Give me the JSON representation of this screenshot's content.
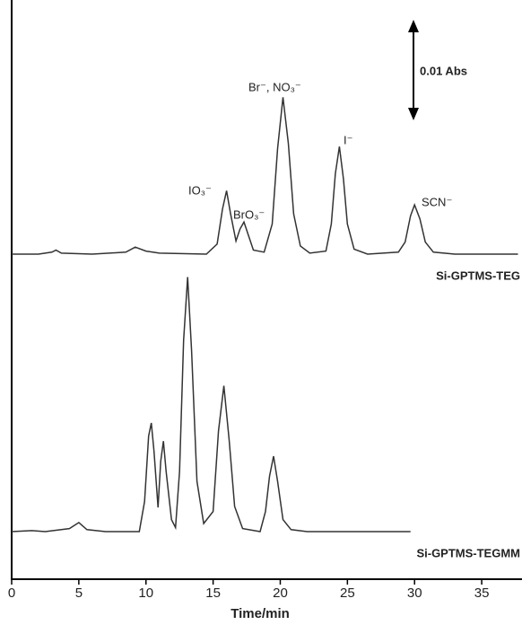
{
  "chart_data": {
    "type": "line",
    "x_label": "Time/min",
    "xlim": [
      0,
      38
    ],
    "xticks": [
      0,
      5,
      10,
      15,
      20,
      25,
      30,
      35
    ],
    "series": [
      {
        "name": "Si-GPTMS-TEG",
        "color": "#333333",
        "x": [
          0,
          2,
          3.0,
          3.3,
          3.7,
          6,
          8.5,
          9.2,
          10,
          11,
          14.5,
          15.3,
          15.7,
          16.0,
          16.3,
          16.7,
          17.0,
          17.3,
          17.6,
          18.0,
          18.8,
          19.4,
          19.8,
          20.2,
          20.6,
          21.0,
          21.5,
          22.2,
          23.4,
          23.8,
          24.1,
          24.4,
          24.7,
          25.0,
          25.5,
          26.5,
          28.8,
          29.3,
          29.7,
          30.0,
          30.4,
          30.8,
          31.4,
          33,
          37.7
        ],
        "values": [
          0,
          0,
          0.0002,
          0.0004,
          0.0001,
          0,
          0.0002,
          0.0007,
          0.0003,
          0.0001,
          0,
          0.001,
          0.0045,
          0.0063,
          0.004,
          0.0013,
          0.0025,
          0.0032,
          0.002,
          0.0004,
          0.0002,
          0.003,
          0.0105,
          0.0156,
          0.011,
          0.004,
          0.0008,
          0.0001,
          0.0003,
          0.003,
          0.008,
          0.0107,
          0.0075,
          0.003,
          0.0005,
          0,
          0.0002,
          0.0012,
          0.0038,
          0.0049,
          0.0035,
          0.0012,
          0.0002,
          0,
          0
        ]
      },
      {
        "name": "Si-GPTMS-TEGMM",
        "color": "#333333",
        "x": [
          0,
          1.5,
          2.5,
          4.3,
          5.0,
          5.6,
          7,
          9.5,
          9.9,
          10.2,
          10.4,
          10.6,
          10.9,
          11.1,
          11.3,
          11.5,
          11.9,
          12.2,
          12.5,
          12.8,
          13.1,
          13.4,
          13.8,
          14.3,
          15.0,
          15.4,
          15.8,
          16.2,
          16.6,
          17.2,
          18.5,
          18.9,
          19.2,
          19.5,
          19.8,
          20.2,
          20.8,
          22,
          29.7
        ],
        "values": [
          0,
          0.0001,
          0,
          0.0003,
          0.0009,
          0.0002,
          0,
          0,
          0.003,
          0.0095,
          0.0108,
          0.008,
          0.0024,
          0.007,
          0.009,
          0.006,
          0.0012,
          0.0004,
          0.006,
          0.019,
          0.0253,
          0.018,
          0.005,
          0.0008,
          0.002,
          0.01,
          0.0145,
          0.009,
          0.0025,
          0.0003,
          0,
          0.002,
          0.0055,
          0.0075,
          0.005,
          0.0012,
          0.0002,
          0,
          0
        ]
      }
    ],
    "annotations": [
      "IO₃⁻",
      "BrO₃⁻",
      "Br⁻, NO₃⁻",
      "I⁻",
      "SCN⁻"
    ],
    "scale_bar": {
      "label": "0.01 Abs",
      "value": 0.01
    }
  }
}
